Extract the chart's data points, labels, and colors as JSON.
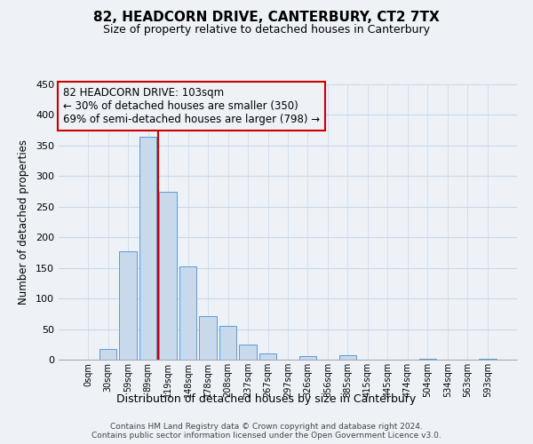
{
  "title": "82, HEADCORN DRIVE, CANTERBURY, CT2 7TX",
  "subtitle": "Size of property relative to detached houses in Canterbury",
  "xlabel": "Distribution of detached houses by size in Canterbury",
  "ylabel": "Number of detached properties",
  "bar_labels": [
    "0sqm",
    "30sqm",
    "59sqm",
    "89sqm",
    "119sqm",
    "148sqm",
    "178sqm",
    "208sqm",
    "237sqm",
    "267sqm",
    "297sqm",
    "326sqm",
    "356sqm",
    "385sqm",
    "415sqm",
    "445sqm",
    "474sqm",
    "504sqm",
    "534sqm",
    "563sqm",
    "593sqm"
  ],
  "bar_values": [
    0,
    18,
    177,
    365,
    275,
    152,
    71,
    55,
    24,
    10,
    0,
    6,
    0,
    7,
    0,
    0,
    0,
    2,
    0,
    0,
    2
  ],
  "bar_color": "#c8d9eb",
  "bar_edge_color": "#5b9bd5",
  "grid_color": "#c8d8e8",
  "vline_color": "#cc0000",
  "vline_x_index": 3.5,
  "annotation_line1": "82 HEADCORN DRIVE: 103sqm",
  "annotation_line2": "← 30% of detached houses are smaller (350)",
  "annotation_line3": "69% of semi-detached houses are larger (798) →",
  "annotation_box_edge_color": "#cc0000",
  "ylim": [
    0,
    450
  ],
  "yticks": [
    0,
    50,
    100,
    150,
    200,
    250,
    300,
    350,
    400,
    450
  ],
  "footer_text": "Contains HM Land Registry data © Crown copyright and database right 2024.\nContains public sector information licensed under the Open Government Licence v3.0.",
  "background_color": "#eef2f7",
  "title_fontsize": 11,
  "subtitle_fontsize": 9
}
